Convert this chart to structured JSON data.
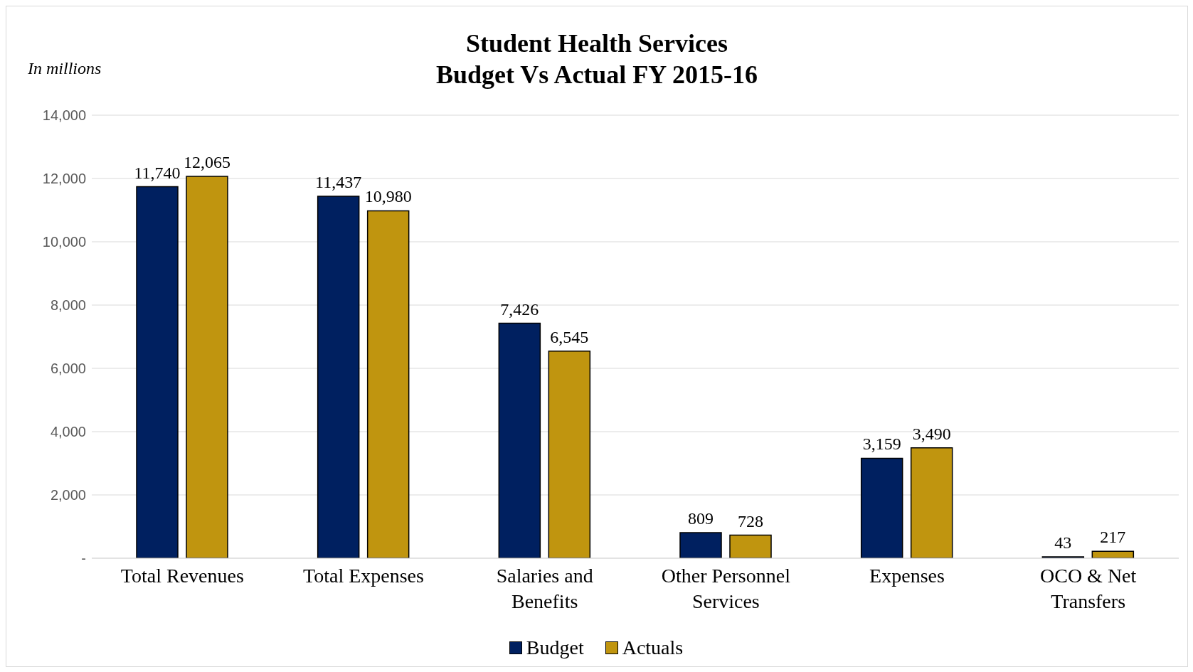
{
  "chart_data": {
    "type": "bar",
    "title": "Student Health Services\nBudget Vs Actual  FY 2015-16",
    "annotations": [
      "In millions"
    ],
    "categories": [
      "Total Revenues",
      "Total Expenses",
      "Salaries and Benefits",
      "Other Personnel Services",
      "Expenses",
      "OCO & Net Transfers"
    ],
    "series": [
      {
        "name": "Budget",
        "color": "#002060",
        "values": [
          11740,
          11437,
          7426,
          809,
          3159,
          43
        ],
        "value_labels": [
          "11,740",
          "11,437",
          "7,426",
          "809",
          "3,159",
          "43"
        ]
      },
      {
        "name": "Actuals",
        "color": "#c0950f",
        "values": [
          12065,
          10980,
          6545,
          728,
          3490,
          217
        ],
        "value_labels": [
          "12,065",
          "10,980",
          "6,545",
          "728",
          "3,490",
          "217"
        ]
      }
    ],
    "ylim": [
      0,
      14000
    ],
    "yticks": [
      {
        "value": 0,
        "label": "-"
      },
      {
        "value": 2000,
        "label": "2,000"
      },
      {
        "value": 4000,
        "label": "4,000"
      },
      {
        "value": 6000,
        "label": "6,000"
      },
      {
        "value": 8000,
        "label": "8,000"
      },
      {
        "value": 10000,
        "label": "10,000"
      },
      {
        "value": 12000,
        "label": "12,000"
      },
      {
        "value": 14000,
        "label": "14,000"
      }
    ],
    "grid": "y",
    "legend": "bottom"
  }
}
